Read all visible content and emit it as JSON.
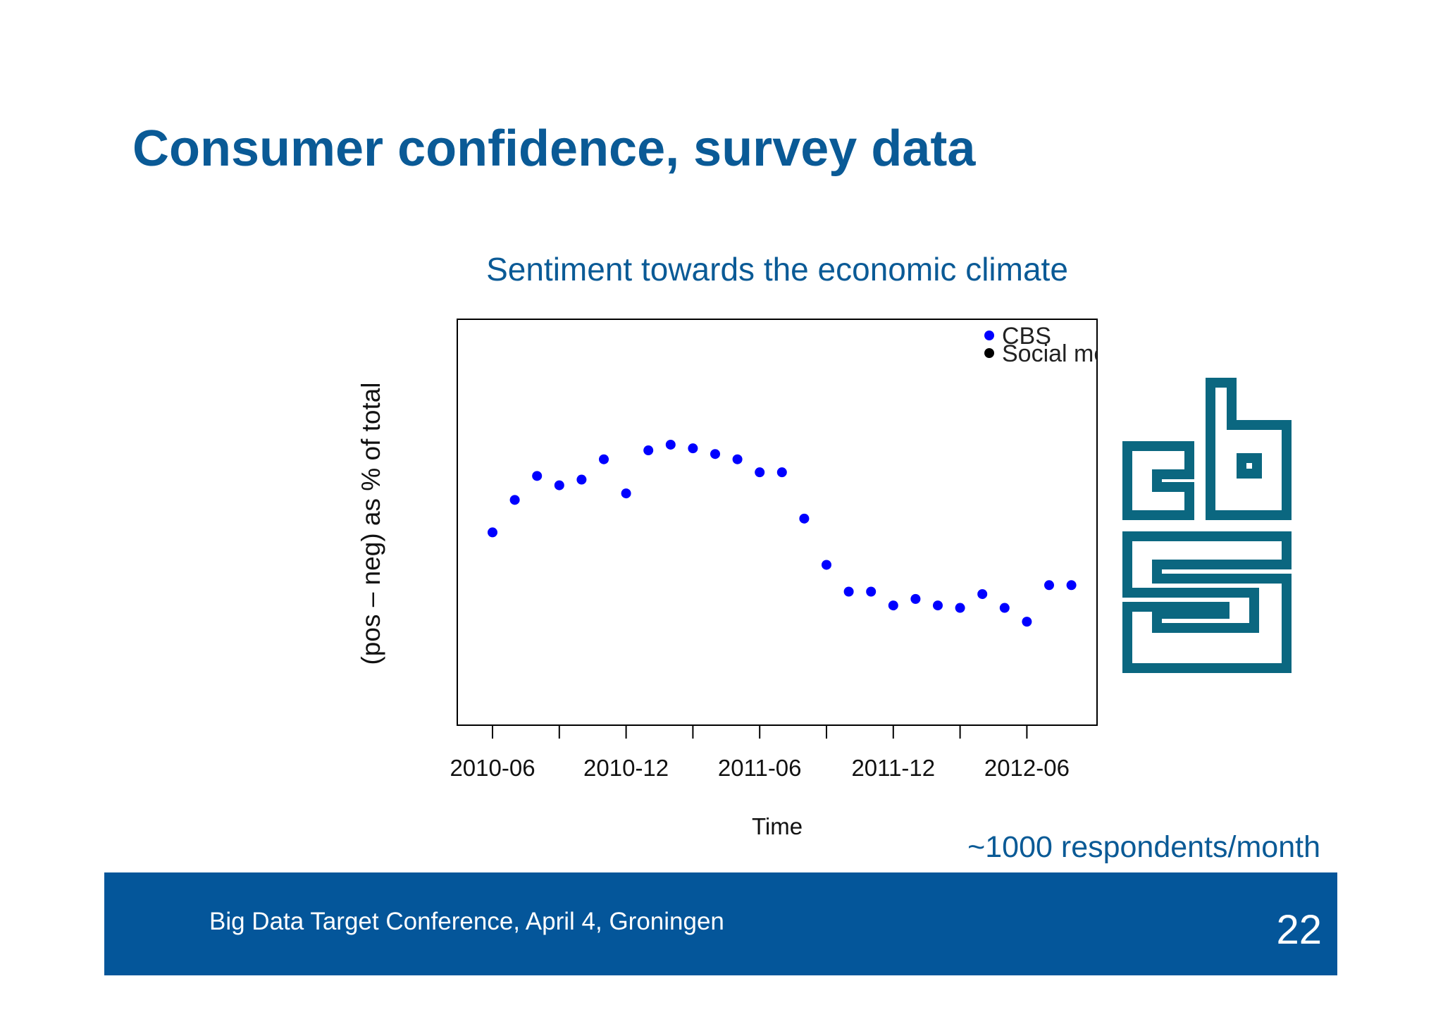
{
  "slide": {
    "title": "Consumer confidence, survey data",
    "note": "~1000 respondents/month",
    "footer_text": "Big Data Target Conference, April 4, Groningen",
    "page_number": "22",
    "logo_text": "cbs"
  },
  "colors": {
    "title": "#0a5a96",
    "footer_background": "#04569a",
    "series_cbs": "#0000ff",
    "series_social_media": "#000000",
    "logo": "#0b6780"
  },
  "chart_data": {
    "type": "scatter",
    "title": "Sentiment towards the economic climate",
    "xlabel": "Time",
    "ylabel": "(pos – neg) as % of total",
    "x_tick_labels": [
      "2010-06",
      "2010-12",
      "2011-06",
      "2011-12",
      "2012-06"
    ],
    "xlim": [
      "2010-05",
      "2012-08"
    ],
    "y_tick_labels": [],
    "y_scale_note": "no y tick labels shown; y values are relative positions (0 = bottom, 1 = top of plot area)",
    "ylim": [
      0,
      1
    ],
    "legend": {
      "position": "top-right",
      "entries": [
        "CBS",
        "Social me"
      ]
    },
    "grid": false,
    "series": [
      {
        "name": "CBS",
        "points": [
          {
            "x": "2010-06",
            "y": 0.475
          },
          {
            "x": "2010-07",
            "y": 0.555
          },
          {
            "x": "2010-08",
            "y": 0.614
          },
          {
            "x": "2010-09",
            "y": 0.591
          },
          {
            "x": "2010-10",
            "y": 0.605
          },
          {
            "x": "2010-11",
            "y": 0.655
          },
          {
            "x": "2010-12",
            "y": 0.571
          },
          {
            "x": "2011-01",
            "y": 0.677
          },
          {
            "x": "2011-02",
            "y": 0.691
          },
          {
            "x": "2011-03",
            "y": 0.682
          },
          {
            "x": "2011-04",
            "y": 0.668
          },
          {
            "x": "2011-05",
            "y": 0.655
          },
          {
            "x": "2011-06",
            "y": 0.623
          },
          {
            "x": "2011-07",
            "y": 0.623
          },
          {
            "x": "2011-08",
            "y": 0.509
          },
          {
            "x": "2011-09",
            "y": 0.395
          },
          {
            "x": "2011-10",
            "y": 0.329
          },
          {
            "x": "2011-11",
            "y": 0.329
          },
          {
            "x": "2011-12",
            "y": 0.295
          },
          {
            "x": "2012-01",
            "y": 0.311
          },
          {
            "x": "2012-02",
            "y": 0.295
          },
          {
            "x": "2012-03",
            "y": 0.289
          },
          {
            "x": "2012-04",
            "y": 0.323
          },
          {
            "x": "2012-05",
            "y": 0.289
          },
          {
            "x": "2012-06",
            "y": 0.255
          },
          {
            "x": "2012-07",
            "y": 0.345
          },
          {
            "x": "2012-08",
            "y": 0.345
          }
        ]
      },
      {
        "name": "Social me",
        "points": []
      }
    ]
  }
}
